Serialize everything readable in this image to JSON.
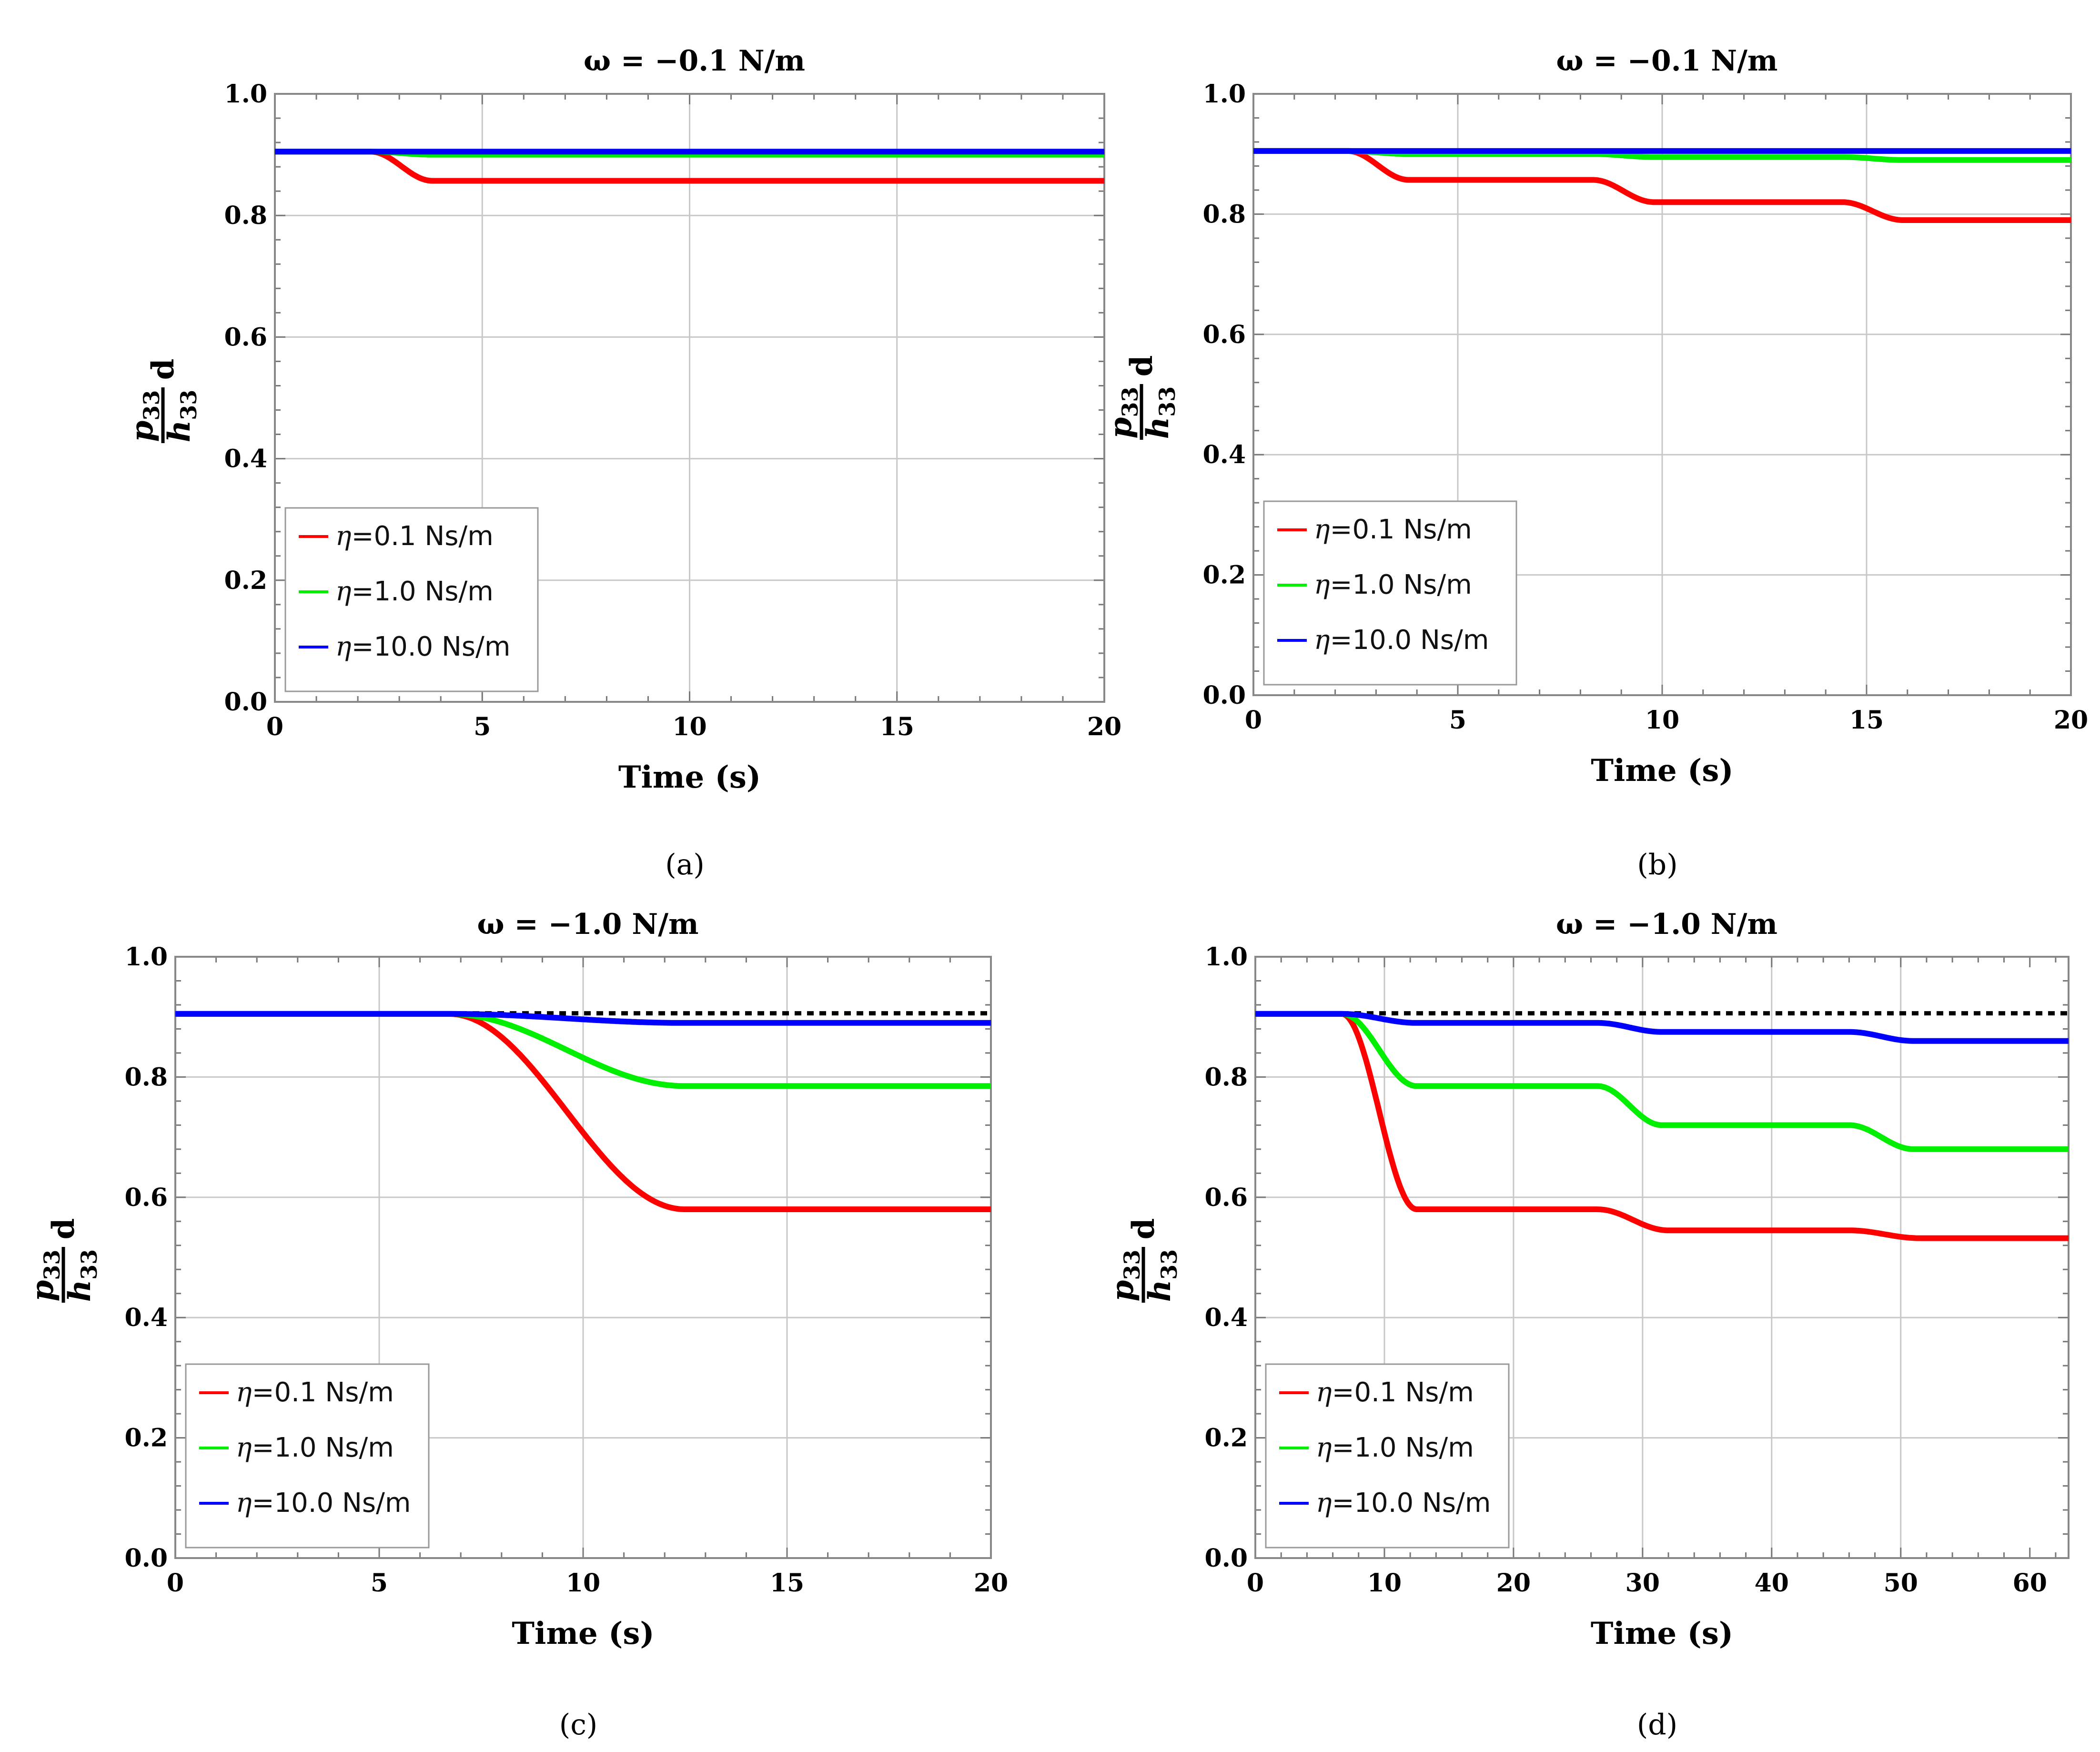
{
  "chart_data": [
    {
      "type": "line",
      "panel_label": "(a)",
      "title": "ω = −0.1 N/m",
      "xlabel": "Time (s)",
      "ylabel": {
        "numerator": "p",
        "numerator_sub": "33",
        "denominator": "h",
        "denominator_sub": "33",
        "suffix": "d"
      },
      "xlim": [
        0,
        20
      ],
      "ylim": [
        0,
        1.0
      ],
      "xticks": [
        0,
        5,
        10,
        15,
        20
      ],
      "xtick_labels": [
        "0",
        "5",
        "10",
        "15",
        "20"
      ],
      "yticks": [
        0,
        0.2,
        0.4,
        0.6,
        0.8,
        1.0
      ],
      "ytick_labels": [
        "0.0",
        "0.2",
        "0.4",
        "0.6",
        "0.8",
        "1.0"
      ],
      "grid": true,
      "legend_position": "lower-left",
      "series": [
        {
          "name": "η=0.1 Ns/m",
          "eta_symbol": "η",
          "label_rest": "=0.1 Ns/m",
          "color": "#ff0000",
          "start": 0.905,
          "steps": [
            {
              "t0": 2.3,
              "t1": 3.8,
              "value": 0.857
            }
          ]
        },
        {
          "name": "η=1.0 Ns/m",
          "eta_symbol": "η",
          "label_rest": "=1.0 Ns/m",
          "color": "#00ee00",
          "start": 0.905,
          "steps": [
            {
              "t0": 2.3,
              "t1": 3.8,
              "value": 0.9
            }
          ]
        },
        {
          "name": "η=10.0 Ns/m",
          "eta_symbol": "η",
          "label_rest": "=10.0 Ns/m",
          "color": "#0000ff",
          "start": 0.905,
          "steps": []
        }
      ],
      "reference_line": {
        "value": 0.906,
        "color": "#000000",
        "style": "dashed"
      }
    },
    {
      "type": "line",
      "panel_label": "(b)",
      "title": "ω = −0.1 N/m",
      "xlabel": "Time (s)",
      "ylabel": {
        "numerator": "p",
        "numerator_sub": "33",
        "denominator": "h",
        "denominator_sub": "33",
        "suffix": "d"
      },
      "xlim": [
        0,
        20
      ],
      "ylim": [
        0,
        1.0
      ],
      "xticks": [
        0,
        5,
        10,
        15,
        20
      ],
      "xtick_labels": [
        "0",
        "5",
        "10",
        "15",
        "20"
      ],
      "yticks": [
        0,
        0.2,
        0.4,
        0.6,
        0.8,
        1.0
      ],
      "ytick_labels": [
        "0.0",
        "0.2",
        "0.4",
        "0.6",
        "0.8",
        "1.0"
      ],
      "grid": true,
      "legend_position": "lower-left",
      "series": [
        {
          "name": "η=0.1 Ns/m",
          "eta_symbol": "η",
          "label_rest": "=0.1 Ns/m",
          "color": "#ff0000",
          "start": 0.905,
          "steps": [
            {
              "t0": 2.3,
              "t1": 3.8,
              "value": 0.857
            },
            {
              "t0": 8.3,
              "t1": 9.8,
              "value": 0.82
            },
            {
              "t0": 14.4,
              "t1": 15.9,
              "value": 0.79
            }
          ]
        },
        {
          "name": "η=1.0 Ns/m",
          "eta_symbol": "η",
          "label_rest": "=1.0 Ns/m",
          "color": "#00ee00",
          "start": 0.905,
          "steps": [
            {
              "t0": 2.3,
              "t1": 3.8,
              "value": 0.9
            },
            {
              "t0": 8.3,
              "t1": 9.8,
              "value": 0.895
            },
            {
              "t0": 14.4,
              "t1": 15.9,
              "value": 0.89
            }
          ]
        },
        {
          "name": "η=10.0 Ns/m",
          "eta_symbol": "η",
          "label_rest": "=10.0 Ns/m",
          "color": "#0000ff",
          "start": 0.905,
          "steps": []
        }
      ],
      "reference_line": {
        "value": 0.906,
        "color": "#000000",
        "style": "dashed"
      }
    },
    {
      "type": "line",
      "panel_label": "(c)",
      "title": "ω = −1.0 N/m",
      "xlabel": "Time (s)",
      "ylabel": {
        "numerator": "p",
        "numerator_sub": "33",
        "denominator": "h",
        "denominator_sub": "33",
        "suffix": "d"
      },
      "xlim": [
        0,
        20
      ],
      "ylim": [
        0,
        1.0
      ],
      "xticks": [
        0,
        5,
        10,
        15,
        20
      ],
      "xtick_labels": [
        "0",
        "5",
        "10",
        "15",
        "20"
      ],
      "yticks": [
        0,
        0.2,
        0.4,
        0.6,
        0.8,
        1.0
      ],
      "ytick_labels": [
        "0.0",
        "0.2",
        "0.4",
        "0.6",
        "0.8",
        "1.0"
      ],
      "grid": true,
      "legend_position": "lower-left",
      "series": [
        {
          "name": "η=0.1 Ns/m",
          "eta_symbol": "η",
          "label_rest": "=0.1 Ns/m",
          "color": "#ff0000",
          "start": 0.905,
          "steps": [
            {
              "t0": 6.7,
              "t1": 12.5,
              "value": 0.58
            }
          ]
        },
        {
          "name": "η=1.0 Ns/m",
          "eta_symbol": "η",
          "label_rest": "=1.0 Ns/m",
          "color": "#00ee00",
          "start": 0.905,
          "steps": [
            {
              "t0": 6.7,
              "t1": 12.5,
              "value": 0.785
            }
          ]
        },
        {
          "name": "η=10.0 Ns/m",
          "eta_symbol": "η",
          "label_rest": "=10.0 Ns/m",
          "color": "#0000ff",
          "start": 0.905,
          "steps": [
            {
              "t0": 6.7,
              "t1": 12.5,
              "value": 0.89
            }
          ]
        }
      ],
      "reference_line": {
        "value": 0.906,
        "color": "#000000",
        "style": "dashed"
      }
    },
    {
      "type": "line",
      "panel_label": "(d)",
      "title": "ω = −1.0 N/m",
      "xlabel": "Time (s)",
      "ylabel": {
        "numerator": "p",
        "numerator_sub": "33",
        "denominator": "h",
        "denominator_sub": "33",
        "suffix": "d"
      },
      "xlim": [
        0,
        63
      ],
      "ylim": [
        0,
        1.0
      ],
      "xticks": [
        0,
        10,
        20,
        30,
        40,
        50,
        60
      ],
      "xtick_labels": [
        "0",
        "10",
        "20",
        "30",
        "40",
        "50",
        "60"
      ],
      "yticks": [
        0,
        0.2,
        0.4,
        0.6,
        0.8,
        1.0
      ],
      "ytick_labels": [
        "0.0",
        "0.2",
        "0.4",
        "0.6",
        "0.8",
        "1.0"
      ],
      "grid": true,
      "legend_position": "lower-left",
      "series": [
        {
          "name": "η=0.1 Ns/m",
          "eta_symbol": "η",
          "label_rest": "=0.1 Ns/m",
          "color": "#ff0000",
          "start": 0.905,
          "steps": [
            {
              "t0": 6.7,
              "t1": 12.5,
              "value": 0.58
            },
            {
              "t0": 26.5,
              "t1": 32.0,
              "value": 0.545
            },
            {
              "t0": 46.0,
              "t1": 51.5,
              "value": 0.532
            }
          ]
        },
        {
          "name": "η=1.0 Ns/m",
          "eta_symbol": "η",
          "label_rest": "=1.0 Ns/m",
          "color": "#00ee00",
          "start": 0.905,
          "steps": [
            {
              "t0": 6.7,
              "t1": 12.5,
              "value": 0.785
            },
            {
              "t0": 26.5,
              "t1": 31.5,
              "value": 0.72
            },
            {
              "t0": 46.0,
              "t1": 51.0,
              "value": 0.68
            }
          ]
        },
        {
          "name": "η=10.0 Ns/m",
          "eta_symbol": "η",
          "label_rest": "=10.0 Ns/m",
          "color": "#0000ff",
          "start": 0.905,
          "steps": [
            {
              "t0": 6.7,
              "t1": 12.5,
              "value": 0.89
            },
            {
              "t0": 26.5,
              "t1": 31.5,
              "value": 0.875
            },
            {
              "t0": 46.0,
              "t1": 51.0,
              "value": 0.86
            }
          ]
        }
      ],
      "reference_line": {
        "value": 0.906,
        "color": "#000000",
        "style": "dashed"
      }
    }
  ]
}
